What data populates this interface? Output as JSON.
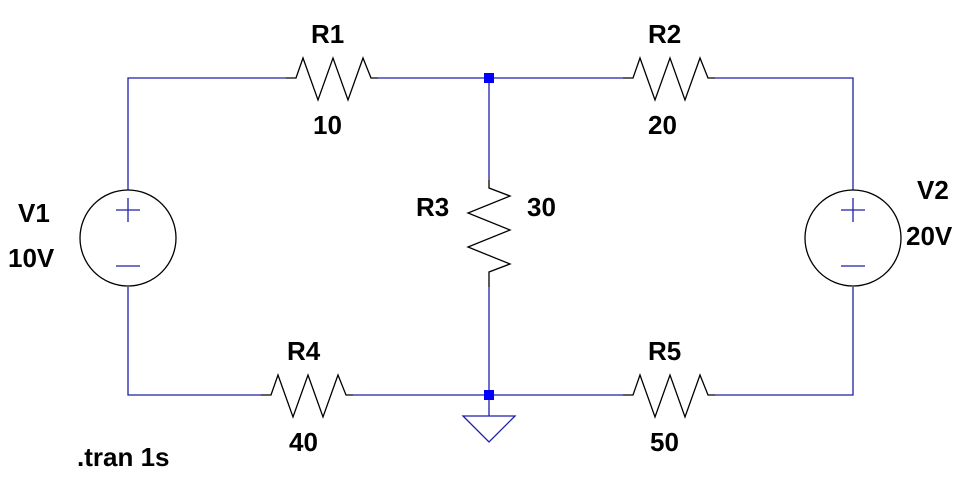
{
  "schematic": {
    "colors": {
      "wire": "#1f1fa8",
      "component": "#000000",
      "node": "#0000ff",
      "background": "#ffffff"
    },
    "components": {
      "R1": {
        "name": "R1",
        "value": "10"
      },
      "R2": {
        "name": "R2",
        "value": "20"
      },
      "R3": {
        "name": "R3",
        "value": "30"
      },
      "R4": {
        "name": "R4",
        "value": "40"
      },
      "R5": {
        "name": "R5",
        "value": "50"
      },
      "V1": {
        "name": "V1",
        "value": "10V"
      },
      "V2": {
        "name": "V2",
        "value": "20V"
      }
    },
    "directive": ".tran 1s",
    "icons": [
      "resistor-icon",
      "voltage-source-icon",
      "ground-icon",
      "junction-node-icon"
    ]
  }
}
